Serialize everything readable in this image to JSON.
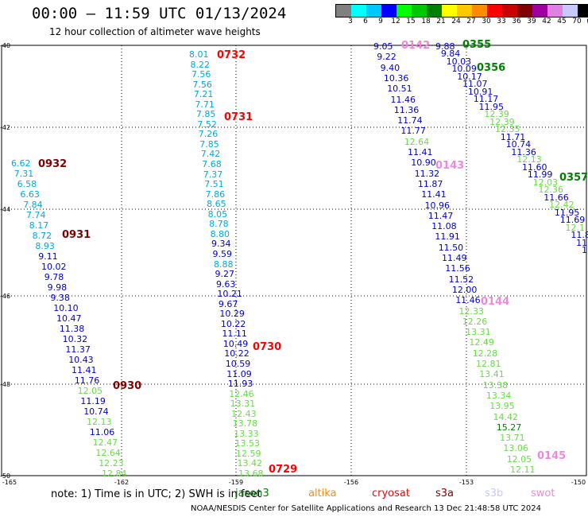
{
  "title": "00:00 — 11:59 UTC 01/13/2024",
  "subtitle": "12 hour collection of altimeter wave heights",
  "colorbar": {
    "colors": [
      "#808080",
      "#00ffff",
      "#00c8ff",
      "#0000ff",
      "#00ff00",
      "#00c800",
      "#008000",
      "#ffff00",
      "#ffc800",
      "#ff8c00",
      "#ff0000",
      "#c80000",
      "#800000",
      "#a000a0",
      "#e080e0",
      "#c8c8ff",
      "#000000"
    ],
    "labels": [
      "3",
      "6",
      "9",
      "12",
      "15",
      "18",
      "21",
      "24",
      "27",
      "30",
      "33",
      "36",
      "39",
      "42",
      "45",
      "70",
      "(ft)"
    ]
  },
  "axes": {
    "lat_labels": [
      "-40",
      "-42",
      "-44",
      "-46",
      "-48",
      "-50"
    ],
    "lon_labels": [
      "-165",
      "-162",
      "-159",
      "-156",
      "-153",
      "-150"
    ]
  },
  "tracks": [
    {
      "pass": "0932",
      "pass_color": "#800000",
      "values": [
        {
          "t": "6.62",
          "c": "#00aadd"
        },
        {
          "t": "7.31",
          "c": "#00aadd"
        },
        {
          "t": "6.58",
          "c": "#00aadd"
        },
        {
          "t": "6.63",
          "c": "#00aadd"
        },
        {
          "t": "7.84",
          "c": "#00aadd"
        },
        {
          "t": "7.74",
          "c": "#00aadd"
        },
        {
          "t": "8.17",
          "c": "#00aadd"
        },
        {
          "t": "8.72",
          "c": "#00aadd"
        },
        {
          "t": "8.93",
          "c": "#00aadd"
        },
        {
          "t": "9.11",
          "c": "#0000cc"
        },
        {
          "t": "10.02",
          "c": "#0000cc"
        },
        {
          "t": "9.78",
          "c": "#0000cc"
        },
        {
          "t": "9.98",
          "c": "#0000cc"
        },
        {
          "t": "9.38",
          "c": "#0000cc"
        },
        {
          "t": "10.10",
          "c": "#0000cc"
        },
        {
          "t": "10.47",
          "c": "#0000cc"
        },
        {
          "t": "11.38",
          "c": "#0000cc"
        },
        {
          "t": "10.32",
          "c": "#0000cc"
        },
        {
          "t": "11.37",
          "c": "#0000cc"
        },
        {
          "t": "10.43",
          "c": "#0000cc"
        },
        {
          "t": "11.41",
          "c": "#0000cc"
        },
        {
          "t": "11.76",
          "c": "#0000cc"
        },
        {
          "t": "12.05",
          "c": "#66dd44"
        },
        {
          "t": "11.19",
          "c": "#0000cc"
        },
        {
          "t": "10.74",
          "c": "#0000cc"
        },
        {
          "t": "12.13",
          "c": "#66dd44"
        },
        {
          "t": "11.06",
          "c": "#0000cc"
        },
        {
          "t": "12.47",
          "c": "#66dd44"
        },
        {
          "t": "12.64",
          "c": "#66dd44"
        },
        {
          "t": "12.23",
          "c": "#66dd44"
        },
        {
          "t": "12.84",
          "c": "#66dd44"
        }
      ]
    },
    {
      "pass": "0931",
      "pass_color": "#800000",
      "values": []
    },
    {
      "pass": "0930",
      "pass_color": "#800000",
      "values": []
    },
    {
      "pass": "0732",
      "pass_color": "#ff0000",
      "values": [
        {
          "t": "8.01",
          "c": "#00aadd"
        },
        {
          "t": "8.22",
          "c": "#00aadd"
        },
        {
          "t": "7.56",
          "c": "#00aadd"
        },
        {
          "t": "7.56",
          "c": "#00aadd"
        },
        {
          "t": "7.21",
          "c": "#00aadd"
        },
        {
          "t": "7.71",
          "c": "#00aadd"
        },
        {
          "t": "7.85",
          "c": "#00aadd"
        },
        {
          "t": "7.52",
          "c": "#00aadd"
        },
        {
          "t": "7.26",
          "c": "#00aadd"
        },
        {
          "t": "7.85",
          "c": "#00aadd"
        },
        {
          "t": "7.42",
          "c": "#00aadd"
        },
        {
          "t": "7.68",
          "c": "#00aadd"
        },
        {
          "t": "7.37",
          "c": "#00aadd"
        },
        {
          "t": "7.51",
          "c": "#00aadd"
        },
        {
          "t": "7.86",
          "c": "#00aadd"
        },
        {
          "t": "8.65",
          "c": "#00aadd"
        },
        {
          "t": "8.05",
          "c": "#00aadd"
        },
        {
          "t": "8.78",
          "c": "#00aadd"
        },
        {
          "t": "8.80",
          "c": "#00aadd"
        },
        {
          "t": "9.34",
          "c": "#0000cc"
        },
        {
          "t": "9.59",
          "c": "#0000cc"
        },
        {
          "t": "8.88",
          "c": "#00aadd"
        },
        {
          "t": "9.27",
          "c": "#0000cc"
        },
        {
          "t": "9.63",
          "c": "#0000cc"
        },
        {
          "t": "10.21",
          "c": "#0000cc"
        },
        {
          "t": "9.67",
          "c": "#0000cc"
        },
        {
          "t": "10.29",
          "c": "#0000cc"
        },
        {
          "t": "10.22",
          "c": "#0000cc"
        },
        {
          "t": "11.11",
          "c": "#0000cc"
        },
        {
          "t": "10.49",
          "c": "#0000cc"
        },
        {
          "t": "10.22",
          "c": "#0000cc"
        },
        {
          "t": "10.59",
          "c": "#0000cc"
        },
        {
          "t": "11.09",
          "c": "#0000cc"
        },
        {
          "t": "11.93",
          "c": "#0000cc"
        },
        {
          "t": "12.46",
          "c": "#66dd44"
        },
        {
          "t": "13.31",
          "c": "#66dd44"
        },
        {
          "t": "12.43",
          "c": "#66dd44"
        },
        {
          "t": "13.78",
          "c": "#66dd44"
        },
        {
          "t": "13.33",
          "c": "#66dd44"
        },
        {
          "t": "13.53",
          "c": "#66dd44"
        },
        {
          "t": "12.59",
          "c": "#66dd44"
        },
        {
          "t": "13.42",
          "c": "#66dd44"
        },
        {
          "t": "13.68",
          "c": "#66dd44"
        }
      ]
    },
    {
      "pass": "0731",
      "pass_color": "#ff0000",
      "values": []
    },
    {
      "pass": "0730",
      "pass_color": "#ff0000",
      "values": []
    },
    {
      "pass": "0729",
      "pass_color": "#ff0000",
      "values": []
    },
    {
      "pass": "0142",
      "pass_color": "#ee88dd",
      "values": [
        {
          "t": "9.05",
          "c": "#0000cc"
        },
        {
          "t": "9.22",
          "c": "#0000cc"
        },
        {
          "t": "9.40",
          "c": "#0000cc"
        },
        {
          "t": "10.36",
          "c": "#0000cc"
        },
        {
          "t": "10.51",
          "c": "#0000cc"
        },
        {
          "t": "11.46",
          "c": "#0000cc"
        },
        {
          "t": "11.36",
          "c": "#0000cc"
        },
        {
          "t": "11.74",
          "c": "#0000cc"
        },
        {
          "t": "11.77",
          "c": "#0000cc"
        },
        {
          "t": "12.64",
          "c": "#66dd44"
        },
        {
          "t": "11.41",
          "c": "#0000cc"
        },
        {
          "t": "10.90",
          "c": "#0000cc"
        },
        {
          "t": "11.32",
          "c": "#0000cc"
        },
        {
          "t": "11.87",
          "c": "#0000cc"
        },
        {
          "t": "11.41",
          "c": "#0000cc"
        },
        {
          "t": "10.96",
          "c": "#0000cc"
        },
        {
          "t": "11.47",
          "c": "#0000cc"
        },
        {
          "t": "11.08",
          "c": "#0000cc"
        },
        {
          "t": "11.91",
          "c": "#0000cc"
        },
        {
          "t": "11.50",
          "c": "#0000cc"
        },
        {
          "t": "11.49",
          "c": "#0000cc"
        },
        {
          "t": "11.56",
          "c": "#0000cc"
        },
        {
          "t": "11.52",
          "c": "#0000cc"
        },
        {
          "t": "12.00",
          "c": "#0000cc"
        },
        {
          "t": "11.46",
          "c": "#0000cc"
        },
        {
          "t": "12.33",
          "c": "#66dd44"
        },
        {
          "t": "12.26",
          "c": "#66dd44"
        },
        {
          "t": "13.31",
          "c": "#66dd44"
        },
        {
          "t": "12.49",
          "c": "#66dd44"
        },
        {
          "t": "12.28",
          "c": "#66dd44"
        },
        {
          "t": "12.81",
          "c": "#66dd44"
        },
        {
          "t": "13.41",
          "c": "#66dd44"
        },
        {
          "t": "13.38",
          "c": "#66dd44"
        },
        {
          "t": "13.34",
          "c": "#66dd44"
        },
        {
          "t": "13.95",
          "c": "#66dd44"
        },
        {
          "t": "14.42",
          "c": "#66dd44"
        },
        {
          "t": "15.27",
          "c": "#008000"
        },
        {
          "t": "13.71",
          "c": "#66dd44"
        },
        {
          "t": "13.06",
          "c": "#66dd44"
        },
        {
          "t": "12.05",
          "c": "#66dd44"
        },
        {
          "t": "12.11",
          "c": "#66dd44"
        }
      ]
    },
    {
      "pass": "0143",
      "pass_color": "#ee88dd",
      "values": []
    },
    {
      "pass": "0144",
      "pass_color": "#ee88dd",
      "values": []
    },
    {
      "pass": "0145",
      "pass_color": "#ee88dd",
      "values": []
    },
    {
      "pass": "0355",
      "pass_color": "#008000",
      "values": [
        {
          "t": "9.88",
          "c": "#0000cc"
        },
        {
          "t": "9.84",
          "c": "#0000cc"
        },
        {
          "t": "10.03",
          "c": "#0000cc"
        },
        {
          "t": "10.09",
          "c": "#0000cc"
        },
        {
          "t": "10.17",
          "c": "#0000cc"
        },
        {
          "t": "11.07",
          "c": "#0000cc"
        },
        {
          "t": "10.91",
          "c": "#0000cc"
        },
        {
          "t": "11.17",
          "c": "#0000cc"
        },
        {
          "t": "11.95",
          "c": "#0000cc"
        },
        {
          "t": "12.39",
          "c": "#66dd44"
        },
        {
          "t": "12.39",
          "c": "#66dd44"
        },
        {
          "t": "12.35",
          "c": "#66dd44"
        },
        {
          "t": "11.71",
          "c": "#0000cc"
        },
        {
          "t": "10.74",
          "c": "#0000cc"
        },
        {
          "t": "11.36",
          "c": "#0000cc"
        },
        {
          "t": "12.13",
          "c": "#66dd44"
        },
        {
          "t": "11.60",
          "c": "#0000cc"
        },
        {
          "t": "11.99",
          "c": "#0000cc"
        },
        {
          "t": "12.03",
          "c": "#66dd44"
        },
        {
          "t": "12.36",
          "c": "#66dd44"
        },
        {
          "t": "11.66",
          "c": "#0000cc"
        },
        {
          "t": "12.42",
          "c": "#66dd44"
        },
        {
          "t": "11.95",
          "c": "#0000cc"
        },
        {
          "t": "11.69",
          "c": "#0000cc"
        },
        {
          "t": "12.1",
          "c": "#66dd44"
        },
        {
          "t": "11.8",
          "c": "#0000cc"
        },
        {
          "t": "11.",
          "c": "#0000cc"
        },
        {
          "t": "1",
          "c": "#0000cc"
        }
      ]
    },
    {
      "pass": "0356",
      "pass_color": "#008000",
      "values": []
    },
    {
      "pass": "0357",
      "pass_color": "#008000",
      "values": []
    }
  ],
  "note": "note:  1) Time is in UTC; 2) SWH is in feet",
  "satellites": [
    {
      "name": "jason3",
      "color": "#008000"
    },
    {
      "name": "altika",
      "color": "#ff8c00"
    },
    {
      "name": "cryosat",
      "color": "#ff0000"
    },
    {
      "name": "s3a",
      "color": "#800000"
    },
    {
      "name": "s3b",
      "color": "#c8c8ff"
    },
    {
      "name": "swot",
      "color": "#ee88dd"
    }
  ],
  "footer": "NOAA/NESDIS Center for Satellite Applications and Research    13 Dec 21:48:58 UTC 2024"
}
